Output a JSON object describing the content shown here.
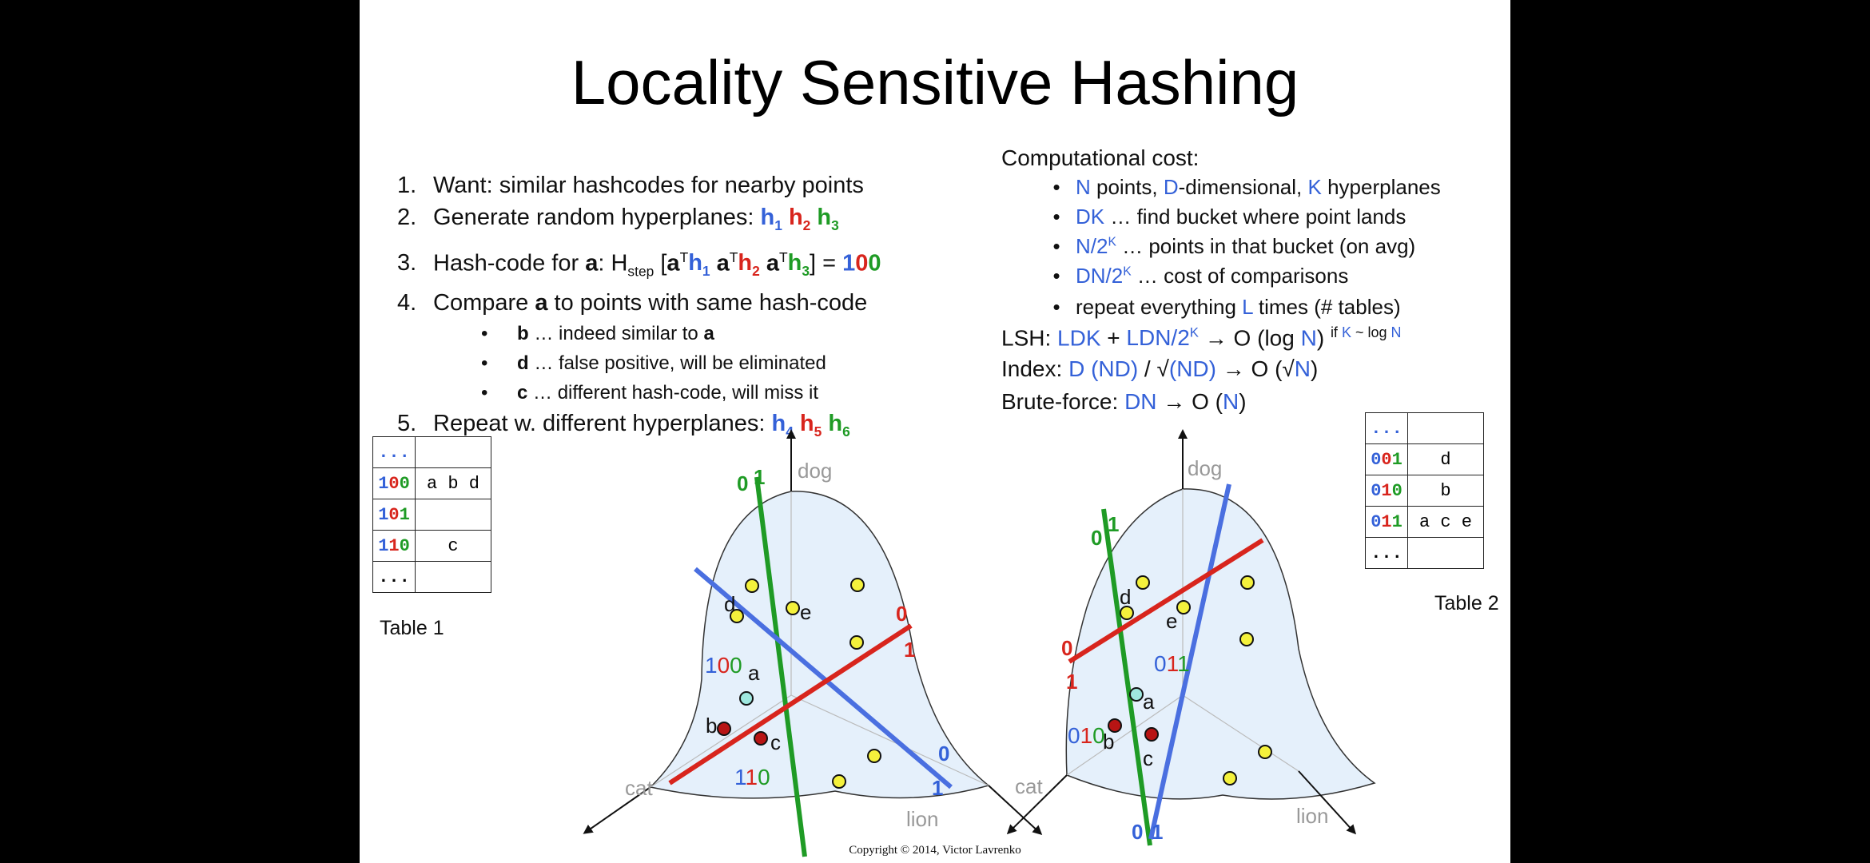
{
  "title": "Locality Sensitive Hashing",
  "steps": {
    "s1": "Want: similar hashcodes for nearby points",
    "s2": "Generate random hyperplanes:",
    "s3_prefix": "Hash-code for",
    "s3_code": "100",
    "s4": "Compare",
    "s4b": "to points with same hash-code",
    "sub_b": "… indeed similar to",
    "sub_d": "… false positive, will be eliminated",
    "sub_c": "… different hash-code, will miss it",
    "s5": "Repeat w. different hyperplanes:"
  },
  "cost": {
    "heading": "Computational cost:",
    "b1": "points,",
    "b1b": "-dimensional,",
    "b1c": "hyperplanes",
    "b2": "… find bucket where point lands",
    "b3": "… points in that bucket (on avg)",
    "b4": "… cost of comparisons",
    "b5a": "repeat everything",
    "b5b": "times (# tables)",
    "lsh_label": "LSH:",
    "index_label": "Index:",
    "brute_label": "Brute-force:"
  },
  "table1": {
    "caption": "Table 1",
    "rows": [
      {
        "code": "...",
        "val": ""
      },
      {
        "code": "100",
        "val": "a b d"
      },
      {
        "code": "101",
        "val": ""
      },
      {
        "code": "110",
        "val": "c"
      },
      {
        "code": "...",
        "val": ""
      }
    ]
  },
  "table2": {
    "caption": "Table 2",
    "rows": [
      {
        "code": "...",
        "val": ""
      },
      {
        "code": "001",
        "val": "d"
      },
      {
        "code": "010",
        "val": "b"
      },
      {
        "code": "011",
        "val": "a c e"
      },
      {
        "code": "...",
        "val": ""
      }
    ]
  },
  "diagram1": {
    "axis_labels": {
      "dog": "dog",
      "cat": "cat",
      "lion": "lion"
    },
    "point_labels": {
      "a": "a",
      "b": "b",
      "c": "c",
      "d": "d",
      "e": "e"
    },
    "region_codes": [
      "100",
      "110"
    ]
  },
  "diagram2": {
    "axis_labels": {
      "dog": "dog",
      "cat": "cat",
      "lion": "lion"
    },
    "region_codes": [
      "011",
      "010"
    ]
  },
  "colors": {
    "blue": "#3461d8",
    "red": "#d8251d",
    "green": "#1f9b25",
    "cyan_point": "#9fe8df",
    "yellow_point": "#f4f13c",
    "dark_red_point": "#b81414",
    "region_fill": "#e5f0fb"
  },
  "copyright": "Copyright © 2014, Victor Lavrenko"
}
